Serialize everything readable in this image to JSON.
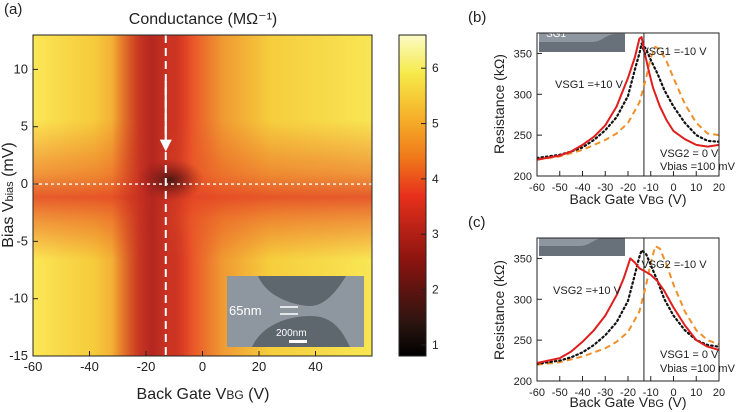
{
  "colors": {
    "solid": "#e01e1e",
    "dotted": "#111111",
    "dashed": "#f0902a",
    "crosshair": "#ffffff",
    "vertical_marker": "#222222",
    "inset_sem": "#8e979f"
  },
  "chart_data": [
    {
      "panel": "(a)",
      "type": "heatmap",
      "title": "Conductance (MΩ⁻¹)",
      "xlabel": "Back Gate VBG (V)",
      "ylabel": "Bias Vbias (mV)",
      "xlim": [
        -60,
        60
      ],
      "ylim": [
        -15,
        13
      ],
      "xticks": [
        -60,
        -40,
        -20,
        0,
        20,
        40
      ],
      "yticks": [
        -15,
        -10,
        -5,
        0,
        5,
        10
      ],
      "x_tick_labels": [
        "-60",
        "-40",
        "-20",
        "0",
        "20",
        "40"
      ],
      "y_tick_labels": [
        "-15",
        "-10",
        "-5",
        "0",
        "5",
        "10"
      ],
      "colorbar": {
        "min": 0.8,
        "max": 6.6,
        "ticks": [
          1,
          2,
          3,
          4,
          5,
          6
        ],
        "tick_labels": [
          "1",
          "2",
          "3",
          "4",
          "5",
          "6"
        ]
      },
      "features": {
        "dirac_point_vbg": -13,
        "zero_bias_line": 0,
        "min_conductance_center": [
          -13,
          0
        ],
        "arrow_from_bias": 9,
        "arrow_to_bias": 3
      },
      "inset": {
        "constriction_label": "65nm",
        "scalebar_label": "200nm"
      }
    },
    {
      "panel": "(b)",
      "type": "line",
      "xlabel": "Back Gate VBG (V)",
      "ylabel": "Resistance (kΩ)",
      "xlim": [
        -60,
        20
      ],
      "ylim": [
        200,
        375
      ],
      "xticks": [
        -60,
        -50,
        -40,
        -30,
        -20,
        -10,
        0,
        10,
        20
      ],
      "yticks": [
        200,
        250,
        300,
        350
      ],
      "x_tick_labels": [
        "-60",
        "-50",
        "-40",
        "-30",
        "-20",
        "-10",
        "0",
        "10",
        "20"
      ],
      "y_tick_labels": [
        "200",
        "250",
        "300",
        "350"
      ],
      "vline_x": -13,
      "inset_label": "SG1",
      "annotations": [
        "VSG1 =-10 V",
        "VSG1 =+10 V",
        "VSG2 = 0 V",
        "Vbias =100 mV"
      ],
      "series": [
        {
          "name": "VSG1 = +10 V",
          "style": "solid",
          "x": [
            -60,
            -50,
            -45,
            -40,
            -35,
            -30,
            -25,
            -20,
            -17,
            -15,
            -14,
            -13,
            -11,
            -9,
            -6,
            -3,
            0,
            5,
            10,
            15,
            20
          ],
          "y": [
            220,
            225,
            230,
            238,
            248,
            262,
            285,
            320,
            345,
            368,
            370,
            355,
            330,
            308,
            285,
            268,
            255,
            245,
            238,
            236,
            238
          ]
        },
        {
          "name": "VSG1 = 0 V",
          "style": "dotted",
          "x": [
            -60,
            -50,
            -45,
            -40,
            -35,
            -30,
            -25,
            -20,
            -17,
            -15,
            -14,
            -12,
            -10,
            -7,
            -4,
            0,
            5,
            10,
            15,
            20
          ],
          "y": [
            222,
            226,
            230,
            235,
            244,
            256,
            272,
            298,
            330,
            350,
            362,
            355,
            342,
            325,
            305,
            285,
            265,
            250,
            243,
            242
          ]
        },
        {
          "name": "VSG1 = -10 V",
          "style": "dashed",
          "x": [
            -60,
            -50,
            -40,
            -30,
            -25,
            -20,
            -15,
            -12,
            -10,
            -8,
            -6,
            -3,
            0,
            5,
            10,
            15,
            20
          ],
          "y": [
            220,
            224,
            232,
            244,
            252,
            265,
            290,
            320,
            345,
            358,
            355,
            340,
            320,
            288,
            265,
            252,
            250
          ]
        }
      ]
    },
    {
      "panel": "(c)",
      "type": "line",
      "xlabel": "Back Gate VBG (V)",
      "ylabel": "Resistance (kΩ)",
      "xlim": [
        -60,
        20
      ],
      "ylim": [
        200,
        375
      ],
      "xticks": [
        -60,
        -50,
        -40,
        -30,
        -20,
        -10,
        0,
        10,
        20
      ],
      "yticks": [
        200,
        250,
        300,
        350
      ],
      "x_tick_labels": [
        "-60",
        "-50",
        "-40",
        "-30",
        "-20",
        "-10",
        "0",
        "10",
        "20"
      ],
      "y_tick_labels": [
        "200",
        "250",
        "300",
        "350"
      ],
      "vline_x": -13,
      "inset_label": "SG2",
      "annotations": [
        "VSG2 =-10 V",
        "VSG2 =+10 V",
        "VSG1 = 0 V",
        "Vbias =100 mV"
      ],
      "series": [
        {
          "name": "VSG2 = +10 V",
          "style": "solid",
          "x": [
            -60,
            -50,
            -45,
            -40,
            -35,
            -30,
            -25,
            -22,
            -19,
            -17,
            -15,
            -13,
            -10,
            -7,
            -4,
            0,
            5,
            10,
            15,
            20
          ],
          "y": [
            222,
            228,
            236,
            248,
            262,
            280,
            305,
            325,
            350,
            345,
            338,
            335,
            330,
            322,
            310,
            290,
            268,
            250,
            242,
            238
          ]
        },
        {
          "name": "VSG2 = 0 V",
          "style": "dotted",
          "x": [
            -60,
            -50,
            -45,
            -40,
            -35,
            -30,
            -25,
            -20,
            -17,
            -15,
            -14,
            -12,
            -10,
            -7,
            -4,
            0,
            5,
            10,
            15,
            20
          ],
          "y": [
            221,
            225,
            229,
            235,
            244,
            256,
            272,
            298,
            330,
            352,
            360,
            355,
            342,
            322,
            300,
            280,
            262,
            250,
            244,
            242
          ]
        },
        {
          "name": "VSG2 = -10 V",
          "style": "dashed",
          "x": [
            -60,
            -50,
            -40,
            -30,
            -25,
            -20,
            -15,
            -12,
            -10,
            -8,
            -6,
            -3,
            0,
            5,
            10,
            15,
            20
          ],
          "y": [
            220,
            223,
            230,
            240,
            248,
            260,
            285,
            318,
            345,
            365,
            362,
            342,
            318,
            285,
            262,
            250,
            245
          ]
        }
      ]
    }
  ]
}
